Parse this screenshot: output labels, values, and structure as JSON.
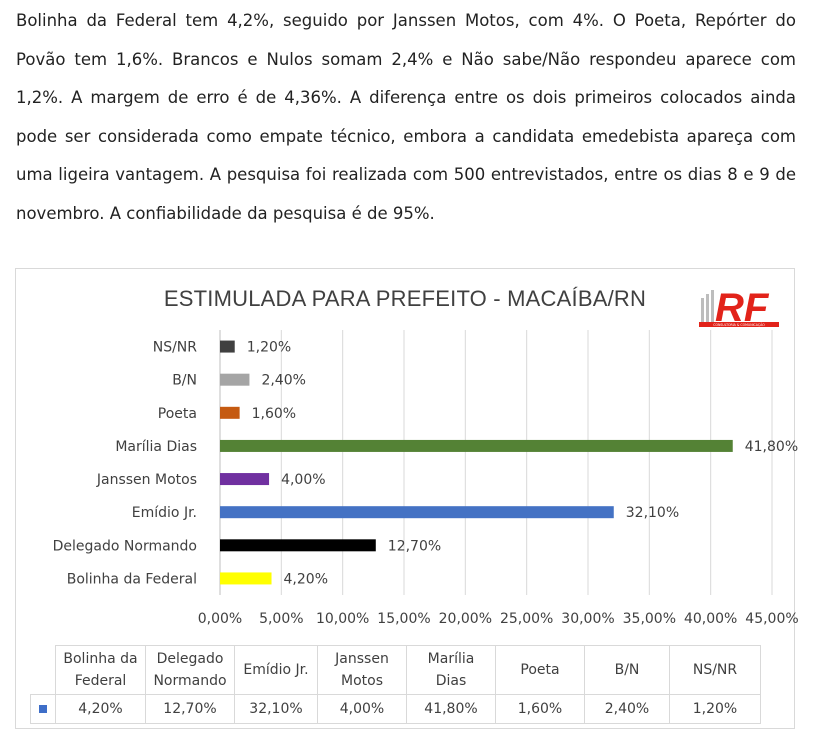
{
  "article": {
    "text": "Bolinha da Federal tem 4,2%, seguido por Janssen Motos, com 4%. O Poeta, Repórter do Povão tem 1,6%. Brancos e Nulos somam 2,4% e Não sabe/Não respondeu aparece com 1,2%. A margem de erro é de 4,36%. A diferença entre os dois primeiros colocados ainda pode ser considerada como empate técnico, embora a candidata emedebista apareça com uma ligeira vantagem. A pesquisa foi realizada com 500 entrevistados, entre os dias 8 e 9 de novembro. A confiabilidade da pesquisa é de 95%."
  },
  "logo": {
    "letters": "RF",
    "subtext": "CONSULTORIA & COMUNICAÇÃO",
    "color": "#e2231a"
  },
  "chart_data": {
    "type": "bar",
    "orientation": "horizontal",
    "title": "ESTIMULADA PARA PREFEITO - MACAÍBA/RN",
    "categories": [
      "NS/NR",
      "B/N",
      "Poeta",
      "Marília Dias",
      "Janssen Motos",
      "Emídio Jr.",
      "Delegado Normando",
      "Bolinha da Federal"
    ],
    "values": [
      1.2,
      2.4,
      1.6,
      41.8,
      4.0,
      32.1,
      12.7,
      4.2
    ],
    "value_labels": [
      "1,20%",
      "2,40%",
      "1,60%",
      "41,80%",
      "4,00%",
      "32,10%",
      "12,70%",
      "4,20%"
    ],
    "colors": [
      "#404040",
      "#a5a5a5",
      "#c55a11",
      "#548235",
      "#7030a0",
      "#4472c4",
      "#000000",
      "#ffff00"
    ],
    "xlim": [
      0,
      45
    ],
    "x_ticks": [
      0,
      5,
      10,
      15,
      20,
      25,
      30,
      35,
      40,
      45
    ],
    "x_tick_labels": [
      "0,00%",
      "5,00%",
      "10,00%",
      "15,00%",
      "20,00%",
      "25,00%",
      "30,00%",
      "35,00%",
      "40,00%",
      "45,00%"
    ],
    "grid": true,
    "xlabel": "",
    "ylabel": "",
    "data_table": {
      "headers": [
        [
          "Bolinha da",
          "Federal"
        ],
        [
          "Delegado",
          "Normando"
        ],
        [
          "Emídio Jr."
        ],
        [
          "Janssen",
          "Motos"
        ],
        [
          "Marília",
          "Dias"
        ],
        [
          "Poeta"
        ],
        [
          "B/N"
        ],
        [
          "NS/NR"
        ]
      ],
      "values": [
        "4,20%",
        "12,70%",
        "32,10%",
        "4,00%",
        "41,80%",
        "1,60%",
        "2,40%",
        "1,20%"
      ],
      "key_color": "#3e6ec8"
    }
  }
}
